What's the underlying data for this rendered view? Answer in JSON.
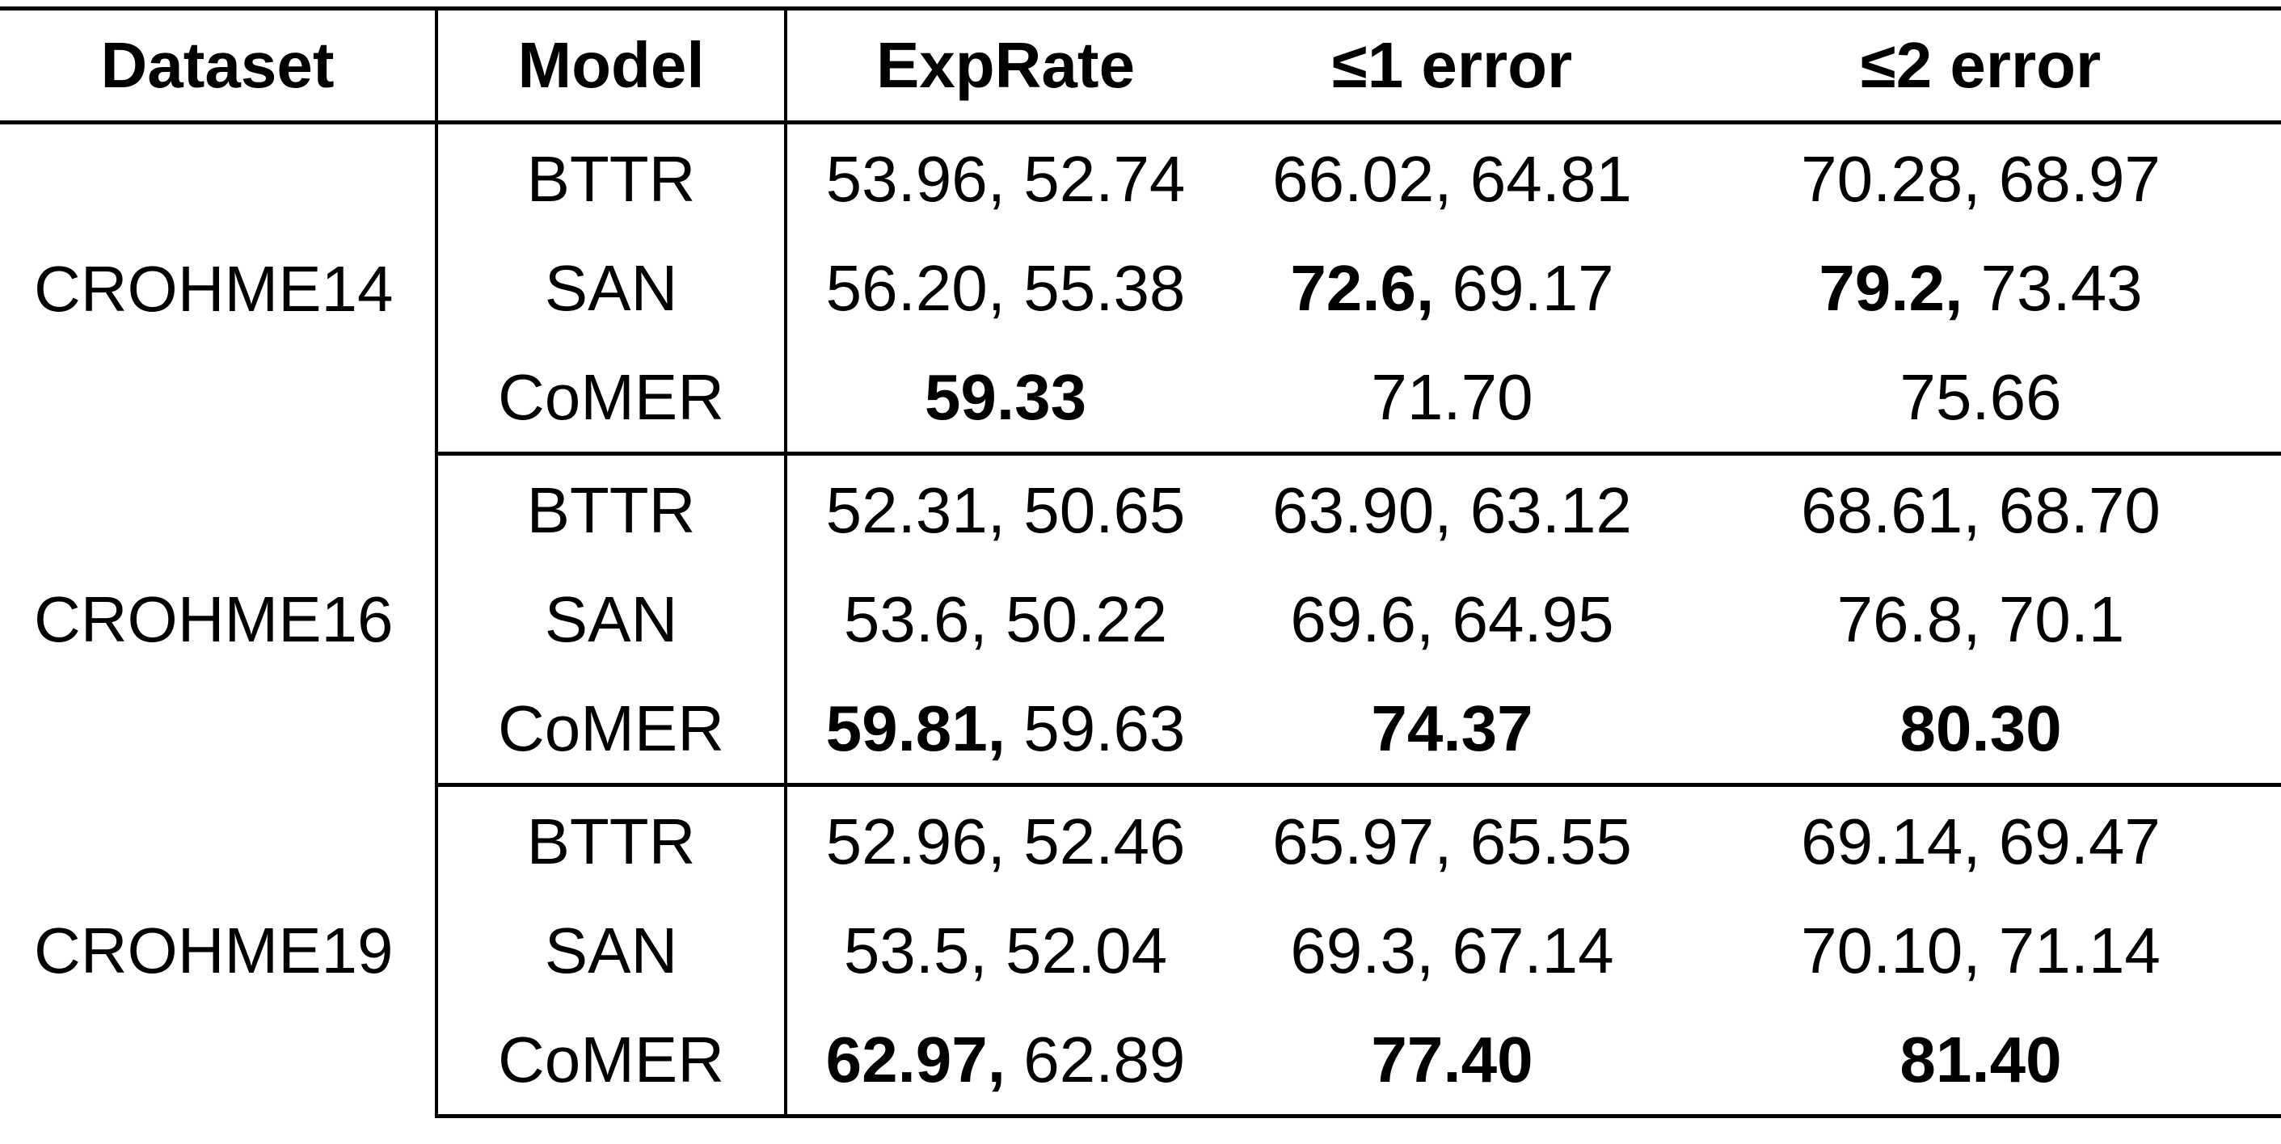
{
  "table": {
    "headers": [
      "Dataset",
      "Model",
      "ExpRate",
      "≤1 error",
      "≤2 error"
    ],
    "groups": [
      {
        "dataset": "CROHME14",
        "rows": [
          {
            "model": "BTTR",
            "exprate": {
              "bold": "",
              "rest": "53.96, 52.74"
            },
            "err1": {
              "bold": "",
              "rest": "66.02, 64.81"
            },
            "err2": {
              "bold": "",
              "rest": "70.28, 68.97"
            }
          },
          {
            "model": "SAN",
            "exprate": {
              "bold": "",
              "rest": "56.20, 55.38"
            },
            "err1": {
              "bold": "72.6,",
              "rest": " 69.17"
            },
            "err2": {
              "bold": "79.2,",
              "rest": " 73.43"
            }
          },
          {
            "model": "CoMER",
            "exprate": {
              "bold": "59.33",
              "rest": ""
            },
            "err1": {
              "bold": "",
              "rest": "71.70"
            },
            "err2": {
              "bold": "",
              "rest": "75.66"
            }
          }
        ]
      },
      {
        "dataset": "CROHME16",
        "rows": [
          {
            "model": "BTTR",
            "exprate": {
              "bold": "",
              "rest": "52.31, 50.65"
            },
            "err1": {
              "bold": "",
              "rest": "63.90, 63.12"
            },
            "err2": {
              "bold": "",
              "rest": "68.61, 68.70"
            }
          },
          {
            "model": "SAN",
            "exprate": {
              "bold": "",
              "rest": "53.6, 50.22"
            },
            "err1": {
              "bold": "",
              "rest": "69.6, 64.95"
            },
            "err2": {
              "bold": "",
              "rest": "76.8, 70.1"
            }
          },
          {
            "model": "CoMER",
            "exprate": {
              "bold": "59.81,",
              "rest": " 59.63"
            },
            "err1": {
              "bold": "74.37",
              "rest": ""
            },
            "err2": {
              "bold": "80.30",
              "rest": ""
            }
          }
        ]
      },
      {
        "dataset": "CROHME19",
        "rows": [
          {
            "model": "BTTR",
            "exprate": {
              "bold": "",
              "rest": "52.96, 52.46"
            },
            "err1": {
              "bold": "",
              "rest": "65.97, 65.55"
            },
            "err2": {
              "bold": "",
              "rest": "69.14, 69.47"
            }
          },
          {
            "model": "SAN",
            "exprate": {
              "bold": "",
              "rest": "53.5, 52.04"
            },
            "err1": {
              "bold": "",
              "rest": "69.3, 67.14"
            },
            "err2": {
              "bold": "",
              "rest": "70.10, 71.14"
            }
          },
          {
            "model": "CoMER",
            "exprate": {
              "bold": "62.97,",
              "rest": " 62.89"
            },
            "err1": {
              "bold": "77.40",
              "rest": ""
            },
            "err2": {
              "bold": "81.40",
              "rest": ""
            }
          }
        ]
      }
    ]
  }
}
